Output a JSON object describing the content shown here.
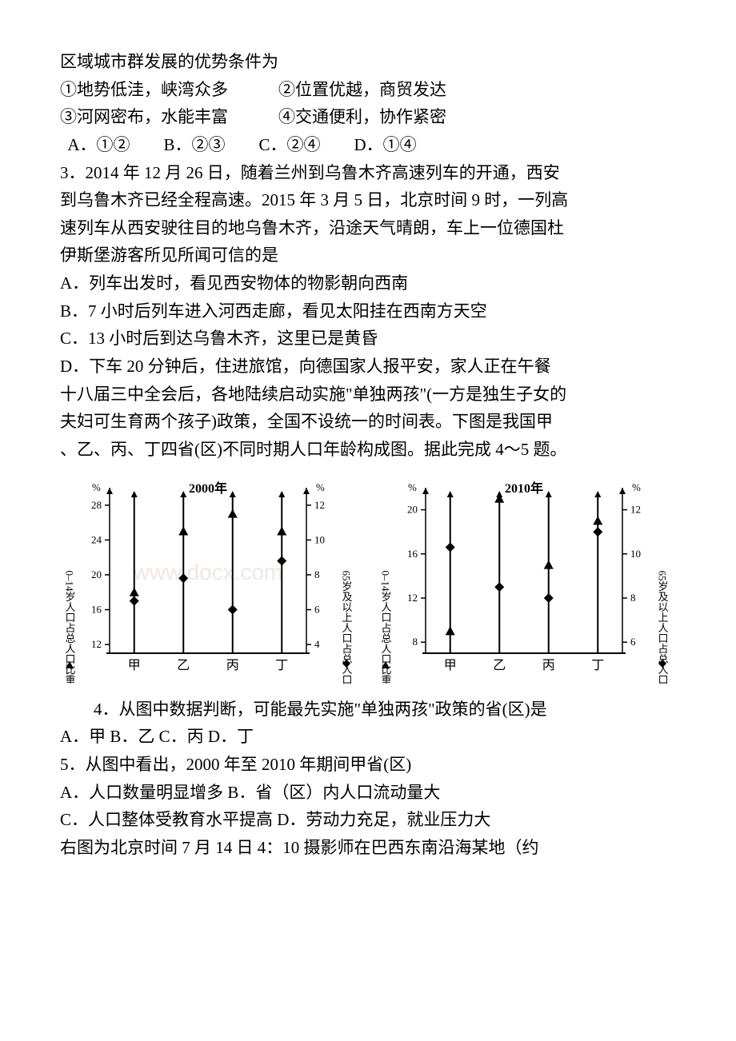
{
  "p1": "区域城市群发展的优势条件为",
  "p2a": "①地势低洼，峡湾众多",
  "p2b": "②位置优越，商贸发达",
  "p3a": "③河网密布，水能丰富",
  "p3b": "④交通便利，协作紧密",
  "q2_options": "  A．①②　    B．②③　    C．②④　    D．①④",
  "q3_l1": "3．2014 年 12 月 26 日，随着兰州到乌鲁木齐高速列车的开通，西安",
  "q3_l2": "到乌鲁木齐已经全程高速。2015 年 3 月 5 日，北京时间 9 时，一列高",
  "q3_l3": "速列车从西安驶往目的地乌鲁木齐，沿途天气晴朗，车上一位德国杜",
  "q3_l4": "伊斯堡游客所见所闻可信的是",
  "q3_a": " A．列车出发时，看见西安物体的物影朝向西南",
  "q3_b": " B．7 小时后列车进入河西走廊，看见太阳挂在西南方天空",
  "q3_c": " C．13 小时后到达乌鲁木齐，这里已是黄昏",
  "q3_d": " D．下车 20 分钟后，住进旅馆，向德国家人报平安，家人正在午餐",
  "pre_l1": "十八届三中全会后，各地陆续启动实施\"单独两孩\"(一方是独生子女的",
  "pre_l2": "夫妇可生育两个孩子)政策，全国不设统一的时间表。下图是我国甲",
  "pre_l3": "、乙、丙、丁四省(区)不同时期人口年龄构成图。据此完成 4～5 题。",
  "q4_l1": "4．从图中数据判断，可能最先实施\"单独两孩\"政策的省(区)是",
  "q4_options": "A．甲     B．乙     C．丙     D．丁",
  "q5_l1": "5．从图中看出，2000 年至 2010 年期间甲省(区)",
  "q5_a": "A．人口数量明显增多       B．省（区）内人口流动量大",
  "q5_c": "C．人口整体受教育水平提高 D．劳动力充足，就业压力大",
  "last_l1": "右图为北京时间 7 月 14 日 4：10 摄影师在巴西东南沿海某地（约",
  "chart_left": {
    "year": "2000年",
    "left_axis_label": "0–14岁人口占总人口比重",
    "right_axis_label": "65岁及以上人口占总人口比重",
    "left_ticks": [
      12,
      16,
      20,
      24,
      28
    ],
    "right_ticks": [
      4,
      6,
      8,
      10,
      12
    ],
    "categories": [
      "甲",
      "乙",
      "丙",
      "丁"
    ],
    "triangle_values": [
      18,
      25,
      27,
      25
    ],
    "diamond_values": [
      6.5,
      7.8,
      6.0,
      8.8
    ],
    "left_ylim": [
      11,
      30
    ],
    "right_ylim": [
      3.5,
      13
    ],
    "marker_color": "#000000",
    "axis_color": "#000000",
    "background": "#ffffff",
    "font_size_axis": 13,
    "font_size_year": 16
  },
  "chart_right": {
    "year": "2010年",
    "left_axis_label": "0–14岁人口占总人口比重",
    "right_axis_label": "65岁及以上人口占总人口比重",
    "left_ticks": [
      8,
      12,
      16,
      20
    ],
    "right_ticks": [
      6,
      8,
      10,
      12
    ],
    "categories": [
      "甲",
      "乙",
      "丙",
      "丁"
    ],
    "triangle_values": [
      9,
      21,
      15,
      19
    ],
    "diamond_values": [
      10.3,
      8.5,
      8.0,
      11.0
    ],
    "left_ylim": [
      7,
      22
    ],
    "right_ylim": [
      5.5,
      13
    ],
    "marker_color": "#000000",
    "axis_color": "#000000",
    "background": "#ffffff",
    "font_size_axis": 13,
    "font_size_year": 16
  },
  "watermark": "www.docx.com",
  "watermark_color": "#f2e6e0"
}
